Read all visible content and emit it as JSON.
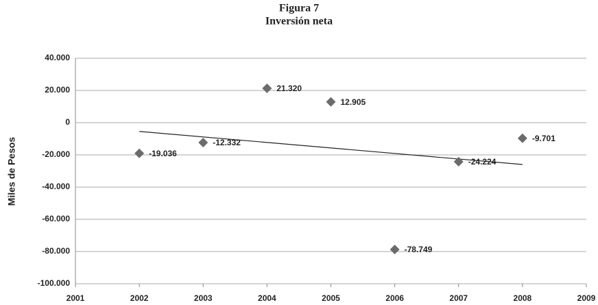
{
  "chart_data": {
    "type": "scatter",
    "title": "Figura 7",
    "subtitle": "Inversión neta",
    "y_label": "Miles de Pesos",
    "x": [
      2002,
      2003,
      2004,
      2005,
      2006,
      2007,
      2008
    ],
    "values": [
      -19036,
      -12332,
      21320,
      12905,
      -78749,
      -24224,
      -9701
    ],
    "value_labels": [
      "-19.036",
      "-12.332",
      "21.320",
      "12.905",
      "-78.749",
      "-24.224",
      "-9.701"
    ],
    "color": "#6b6b6b",
    "trendline": "linear",
    "xlim": [
      2001,
      2009
    ],
    "xticks": [
      2001,
      2002,
      2003,
      2004,
      2005,
      2006,
      2007,
      2008,
      2009
    ],
    "ylim": [
      -100000,
      40000
    ],
    "yticks": [
      {
        "value": -100000,
        "label": "-100.000"
      },
      {
        "value": -80000,
        "label": "-80.000"
      },
      {
        "value": -60000,
        "label": "-60.000"
      },
      {
        "value": -40000,
        "label": "-40.000"
      },
      {
        "value": -20000,
        "label": "-20.000"
      },
      0,
      {
        "value": 20000,
        "label": "20.000"
      },
      {
        "value": 40000,
        "label": "40.000"
      }
    ],
    "grid": true
  }
}
